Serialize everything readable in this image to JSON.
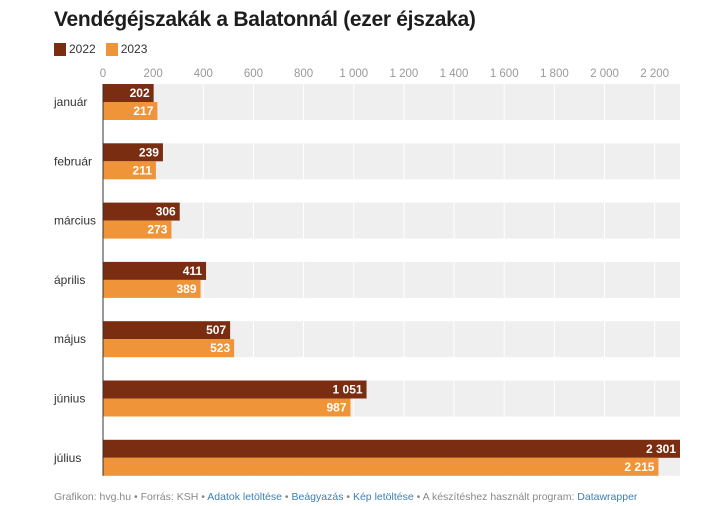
{
  "chart_data": {
    "type": "bar",
    "title": "Vendégéjszakák a Balatonnál (ezer éjszaka)",
    "categories": [
      "január",
      "február",
      "március",
      "április",
      "május",
      "június",
      "július"
    ],
    "series": [
      {
        "name": "2022",
        "color": "#7b2d12",
        "values": [
          202,
          239,
          306,
          411,
          507,
          1051,
          2301
        ],
        "labels": [
          "202",
          "239",
          "306",
          "411",
          "507",
          "1 051",
          "2 301"
        ]
      },
      {
        "name": "2023",
        "color": "#ef9439",
        "values": [
          217,
          211,
          273,
          389,
          523,
          987,
          2215
        ],
        "labels": [
          "217",
          "211",
          "273",
          "389",
          "523",
          "987",
          "2 215"
        ]
      }
    ],
    "xticks": [
      0,
      200,
      400,
      600,
      800,
      1000,
      1200,
      1400,
      1600,
      1800,
      2000,
      2200
    ],
    "xtick_labels": [
      "0",
      "200",
      "400",
      "600",
      "800",
      "1 000",
      "1 200",
      "1 400",
      "1 600",
      "1 800",
      "2 000",
      "2 200"
    ],
    "xlim": [
      0,
      2301
    ],
    "orientation": "horizontal",
    "legend": "top-left"
  },
  "footer": {
    "credit": "Grafikon: hvg.hu",
    "source": "Forrás: KSH",
    "download": "Adatok letöltése",
    "embed": "Beágyazás",
    "image": "Kép letöltése",
    "program": "A készítéshez használt program:",
    "tool": "Datawrapper",
    "sep": " • "
  }
}
